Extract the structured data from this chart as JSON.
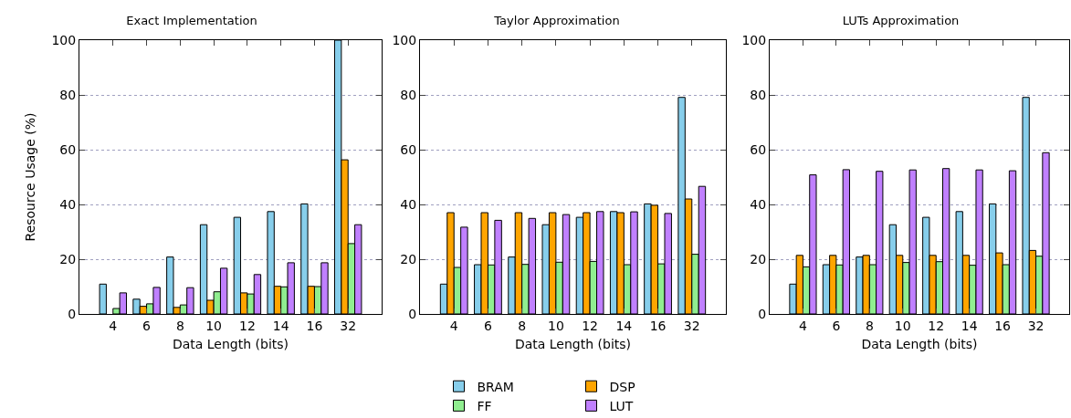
{
  "chart_data": [
    {
      "type": "bar",
      "title": "Exact Implementation",
      "xlabel": "Data Length (bits)",
      "ylabel": "Resource Usage (%)",
      "categories": [
        "4",
        "6",
        "8",
        "10",
        "12",
        "14",
        "16",
        "32"
      ],
      "ylim": [
        0,
        100
      ],
      "yticks": [
        0,
        20,
        40,
        60,
        80,
        100
      ],
      "grid": "y",
      "series": [
        {
          "color": "#87ceeb",
          "values": [
            10.9,
            5.4,
            20.8,
            32.6,
            35.3,
            37.4,
            40.2,
            100
          ]
        },
        {
          "color": "#ffa500",
          "values": [
            null,
            2.8,
            2.4,
            5,
            7.7,
            10.1,
            10.1,
            56.3
          ]
        },
        {
          "color": "#90ee90",
          "values": [
            2,
            3.7,
            3.3,
            8.1,
            7.3,
            9.9,
            10,
            25.7
          ]
        },
        {
          "color": "#c080ff",
          "values": [
            7.7,
            9.7,
            9.6,
            16.7,
            14.4,
            18.7,
            18.7,
            32.6
          ]
        }
      ]
    },
    {
      "type": "bar",
      "title": "Taylor Approximation",
      "xlabel": "Data Length (bits)",
      "categories": [
        "4",
        "6",
        "8",
        "10",
        "12",
        "14",
        "16",
        "32"
      ],
      "ylim": [
        0,
        100
      ],
      "yticks": [
        0,
        20,
        40,
        60,
        80,
        100
      ],
      "grid": "y",
      "legend": "bottom",
      "series": [
        {
          "name": "BRAM",
          "color": "#87ceeb",
          "values": [
            10.9,
            18,
            20.8,
            32.6,
            35.3,
            37.4,
            40.2,
            79.1
          ]
        },
        {
          "name": "DSP",
          "color": "#ffa500",
          "values": [
            37,
            37,
            37,
            37,
            37,
            37,
            39.7,
            42
          ]
        },
        {
          "name": "FF",
          "color": "#90ee90",
          "values": [
            17,
            17.9,
            18.1,
            18.9,
            19.2,
            18,
            18.3,
            21.8
          ]
        },
        {
          "name": "LUT",
          "color": "#c080ff",
          "values": [
            31.7,
            34.2,
            34.9,
            36.3,
            37.4,
            37.3,
            36.7,
            46.6
          ]
        }
      ]
    },
    {
      "type": "bar",
      "title": "LUTs Approximation",
      "xlabel": "Data Length (bits)",
      "categories": [
        "4",
        "6",
        "8",
        "10",
        "12",
        "14",
        "16",
        "32"
      ],
      "ylim": [
        0,
        100
      ],
      "yticks": [
        0,
        20,
        40,
        60,
        80,
        100
      ],
      "grid": "y",
      "series": [
        {
          "color": "#87ceeb",
          "values": [
            10.9,
            18,
            20.8,
            32.6,
            35.3,
            37.4,
            40.2,
            79.1
          ]
        },
        {
          "color": "#ffa500",
          "values": [
            21.4,
            21.4,
            21.4,
            21.4,
            21.4,
            21.4,
            22.3,
            23.2
          ]
        },
        {
          "color": "#90ee90",
          "values": [
            17.2,
            17.9,
            18,
            18.8,
            19.1,
            17.8,
            18,
            21.1
          ]
        },
        {
          "color": "#c080ff",
          "values": [
            50.8,
            52.7,
            52.1,
            52.6,
            53.1,
            52.6,
            52.3,
            58.9
          ]
        }
      ]
    }
  ]
}
